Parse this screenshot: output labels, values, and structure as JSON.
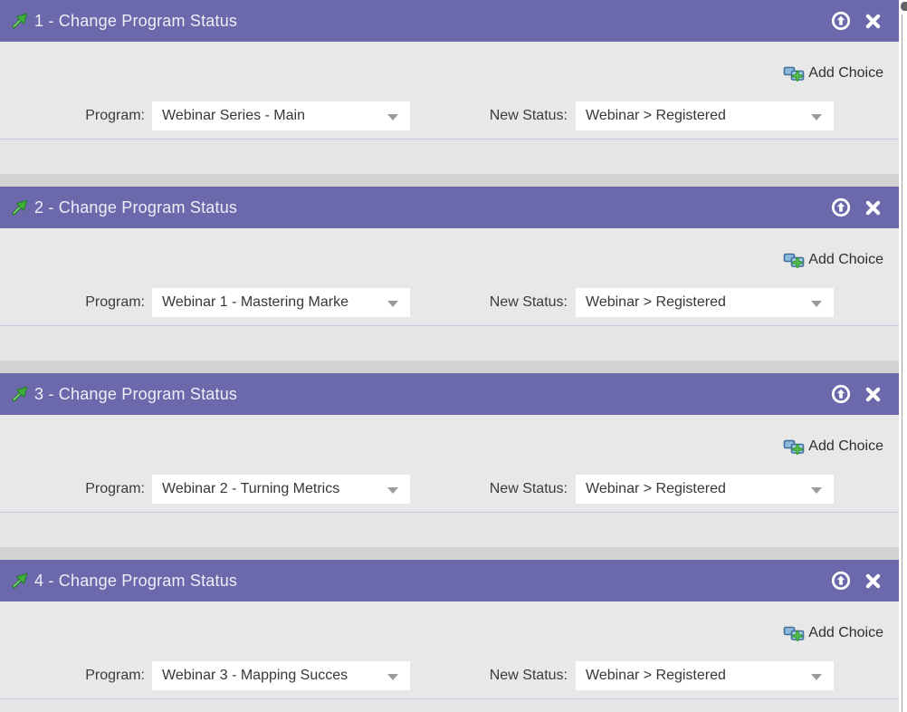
{
  "colors": {
    "header_purple": "#6c68ac",
    "body_gray": "#e9e8e8",
    "page_gray": "#e6e5e5",
    "strip_gray": "#d3d2d2",
    "panel_border": "#c7c4db",
    "title_text": "#efedf6",
    "label_text": "#3b3b3b",
    "arrow_green": "#3fae3a",
    "add_icon_blue": "#7fb2d9"
  },
  "labels": {
    "program": "Program:",
    "new_status": "New Status:",
    "add_choice": "Add Choice"
  },
  "icons": {
    "step": "green-up-right-arrow-icon",
    "move_up": "circle-up-arrow-icon",
    "close": "close-x-icon",
    "add_choice": "add-choice-plus-icon",
    "dropdown": "caret-down-icon"
  },
  "panels": [
    {
      "title": "1 - Change Program Status",
      "program": "Webinar Series - Main",
      "new_status": "Webinar > Registered"
    },
    {
      "title": "2 - Change Program Status",
      "program": "Webinar 1 - Mastering Marke",
      "new_status": "Webinar > Registered"
    },
    {
      "title": "3 - Change Program Status",
      "program": "Webinar 2 - Turning Metrics",
      "new_status": "Webinar > Registered"
    },
    {
      "title": "4 - Change Program Status",
      "program": "Webinar 3 - Mapping Succes",
      "new_status": "Webinar > Registered"
    }
  ]
}
